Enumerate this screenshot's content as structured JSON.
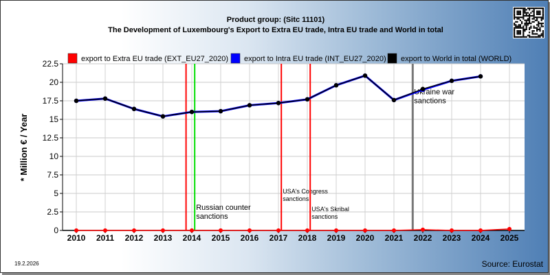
{
  "chart_data": {
    "type": "line",
    "title": "Product group:  (Sitc 11101)",
    "subtitle": "The Development of Luxembourg's Export to Extra EU trade, Intra EU trade and World in total",
    "ylabel": "* Million € / Year",
    "ylim": [
      0,
      22.5
    ],
    "y_ticks": [
      0,
      2.5,
      5,
      7.5,
      10,
      12.5,
      15,
      17.5,
      20,
      22.5
    ],
    "y_tick_labels": [
      "0",
      "2.5",
      "5",
      "7.5",
      "10",
      "12.5",
      "15",
      "17.5",
      "20",
      "22.5"
    ],
    "x_range": [
      2010,
      2025
    ],
    "categories": [
      "2010",
      "2011",
      "2012",
      "2013",
      "2014",
      "2015",
      "2016",
      "2017",
      "2018",
      "2019",
      "2020",
      "2021",
      "2022",
      "2023",
      "2024",
      "2025"
    ],
    "grid": true,
    "legend_position": "top",
    "series": [
      {
        "name": "export to Extra EU trade (EXT_EU27_2020)",
        "color": "#ff0000",
        "x": [
          2010,
          2011,
          2012,
          2013,
          2014,
          2015,
          2016,
          2017,
          2018,
          2019,
          2020,
          2021,
          2022,
          2023,
          2024,
          2025
        ],
        "values": [
          0,
          0,
          0,
          0,
          0,
          0,
          0,
          0,
          0,
          0,
          0,
          0,
          0.1,
          0,
          0,
          0.2
        ]
      },
      {
        "name": "export to Intra EU trade (INT_EU27_2020)",
        "color": "#0000ff",
        "x": [
          2010,
          2011,
          2012,
          2013,
          2014,
          2015,
          2016,
          2017,
          2018,
          2019,
          2020,
          2021,
          2022,
          2023,
          2024
        ],
        "values": [
          17.5,
          17.8,
          16.4,
          15.4,
          16.0,
          16.1,
          16.9,
          17.2,
          17.7,
          19.6,
          20.9,
          17.6,
          19.0,
          20.2,
          20.8
        ]
      },
      {
        "name": "export to World in total (WORLD)",
        "color": "#000000",
        "x": [
          2010,
          2011,
          2012,
          2013,
          2014,
          2015,
          2016,
          2017,
          2018,
          2019,
          2020,
          2021,
          2022,
          2023,
          2024
        ],
        "values": [
          17.5,
          17.8,
          16.4,
          15.4,
          16.0,
          16.1,
          16.9,
          17.2,
          17.7,
          19.6,
          20.9,
          17.6,
          19.1,
          20.2,
          20.8
        ]
      }
    ],
    "events": [
      {
        "x": 2013.8,
        "color": "#ff0000",
        "label": ""
      },
      {
        "x": 2014.1,
        "color": "#00dd00",
        "label": "Russian counter sanctions",
        "label_lines": [
          "Russian counter",
          "sanctions"
        ],
        "label_y": 2.8,
        "size": "big"
      },
      {
        "x": 2017.1,
        "color": "#ff0000",
        "label": "USA's Congress sanctions",
        "label_lines": [
          "USA's Congress",
          "sanctions"
        ],
        "label_y": 5.0,
        "size": "small"
      },
      {
        "x": 2018.1,
        "color": "#ff0000",
        "label": "USA's Skribal sanctions",
        "label_lines": [
          "USA's Skribal",
          "sanctions"
        ],
        "label_y": 2.6,
        "size": "small"
      },
      {
        "x": 2021.65,
        "color": "#777777",
        "label": "Ukraine war sanctions",
        "label_lines": [
          "Ukraine war",
          "sanctions"
        ],
        "label_y": 18.4,
        "size": "big"
      }
    ]
  },
  "footer": {
    "date": "19.2.2026",
    "source": "Source: Eurostat"
  },
  "icons": {
    "qr": "qr-code-icon"
  }
}
